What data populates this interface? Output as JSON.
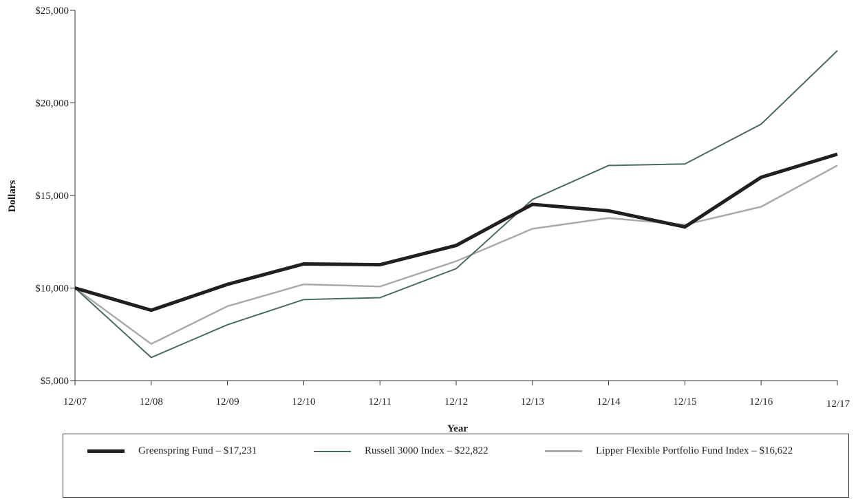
{
  "chart_data": {
    "type": "line",
    "xlabel": "Year",
    "ylabel": "Dollars",
    "categories": [
      "12/07",
      "12/08",
      "12/09",
      "12/10",
      "12/11",
      "12/12",
      "12/13",
      "12/14",
      "12/15",
      "12/16",
      "12/17"
    ],
    "ylim": [
      5000,
      25000
    ],
    "yticks": [
      5000,
      10000,
      15000,
      20000,
      25000
    ],
    "ytick_labels": [
      "$5,000",
      "$10,000",
      "$15,000",
      "$20,000",
      "$25,000"
    ],
    "grid": false,
    "legend_position": "bottom",
    "series": [
      {
        "name": "Greenspring Fund – $17,231",
        "color": "#231f20",
        "width": 5,
        "values": [
          10000,
          8800,
          10200,
          11300,
          11260,
          12300,
          14520,
          14170,
          13300,
          15980,
          17231
        ]
      },
      {
        "name": "Russell 3000 Index – $22,822",
        "color": "#4a6b5e",
        "width": 2,
        "values": [
          10000,
          6250,
          8020,
          9380,
          9480,
          11050,
          14780,
          16620,
          16700,
          18850,
          22822
        ]
      },
      {
        "name": "Lipper Flexible Portfolio Fund Index – $16,622",
        "color": "#a9abaa",
        "width": 2.5,
        "values": [
          10000,
          6980,
          9020,
          10200,
          10080,
          11450,
          13200,
          13780,
          13420,
          14390,
          16622
        ]
      }
    ]
  }
}
